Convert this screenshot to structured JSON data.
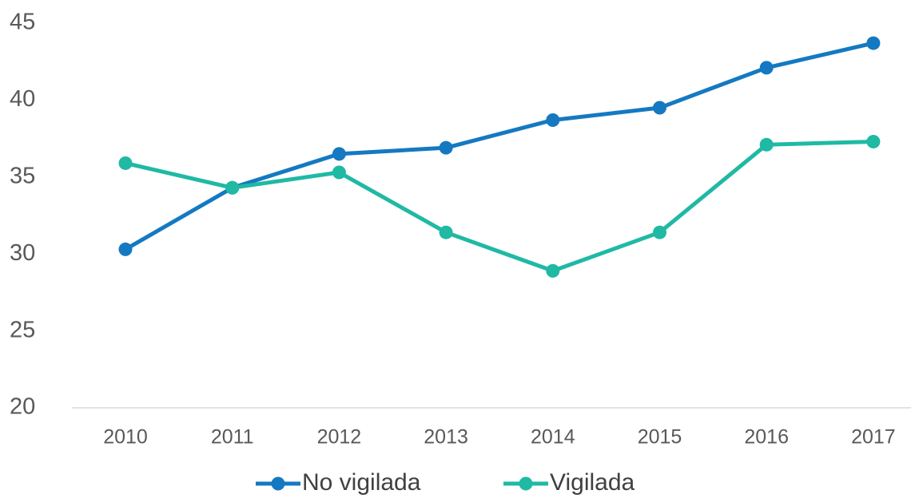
{
  "chart_data": {
    "type": "line",
    "categories": [
      "2010",
      "2011",
      "2012",
      "2013",
      "2014",
      "2015",
      "2016",
      "2017"
    ],
    "series": [
      {
        "name": "No vigilada",
        "color": "#1479c1",
        "values": [
          30.3,
          34.3,
          36.5,
          36.9,
          38.7,
          39.5,
          42.1,
          43.7
        ]
      },
      {
        "name": "Vigilada",
        "color": "#1fb9a4",
        "values": [
          35.9,
          34.3,
          35.3,
          31.4,
          28.9,
          31.4,
          37.1,
          37.3
        ]
      }
    ],
    "ylim": [
      20,
      45
    ],
    "yticks": [
      20,
      25,
      30,
      35,
      40,
      45
    ],
    "grid": false,
    "legend": "bottom"
  }
}
